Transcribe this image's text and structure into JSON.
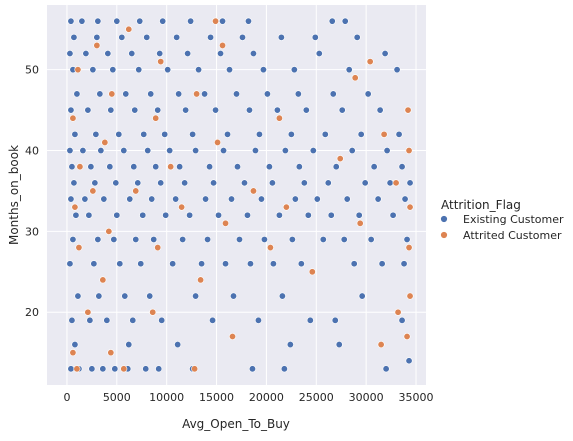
{
  "chart_data": {
    "type": "scatter",
    "title": "",
    "xlabel": "Avg_Open_To_Buy",
    "ylabel": "Months_on_book",
    "xlim": [
      -2000,
      36000
    ],
    "ylim": [
      11,
      58
    ],
    "xticks": [
      0,
      5000,
      10000,
      15000,
      20000,
      25000,
      30000,
      35000
    ],
    "xtick_labels": [
      "0",
      "5000",
      "10000",
      "15000",
      "20000",
      "25000",
      "30000",
      "35000"
    ],
    "yticks": [
      20,
      30,
      40,
      50
    ],
    "ytick_labels": [
      "20",
      "30",
      "40",
      "50"
    ],
    "grid": true,
    "legend": {
      "title": "Attrition_Flag",
      "placement": "right",
      "entries": [
        "Existing Customer",
        "Attrited Customer"
      ]
    },
    "series": [
      {
        "name": "Existing Customer",
        "color": "#4c72b0",
        "points": [
          [
            400,
            13
          ],
          [
            1200,
            13
          ],
          [
            2500,
            13
          ],
          [
            3600,
            13
          ],
          [
            4800,
            13
          ],
          [
            6100,
            13
          ],
          [
            7900,
            13
          ],
          [
            9200,
            13
          ],
          [
            12600,
            13
          ],
          [
            18600,
            13
          ],
          [
            21800,
            13
          ],
          [
            32000,
            13
          ],
          [
            34300,
            14
          ],
          [
            800,
            16
          ],
          [
            6200,
            16
          ],
          [
            11100,
            16
          ],
          [
            22400,
            16
          ],
          [
            27300,
            16
          ],
          [
            500,
            19
          ],
          [
            2300,
            19
          ],
          [
            4000,
            19
          ],
          [
            6600,
            19
          ],
          [
            9500,
            19
          ],
          [
            14600,
            19
          ],
          [
            19200,
            19
          ],
          [
            24400,
            19
          ],
          [
            26900,
            19
          ],
          [
            33600,
            19
          ],
          [
            1100,
            22
          ],
          [
            3200,
            22
          ],
          [
            5800,
            22
          ],
          [
            8300,
            22
          ],
          [
            12900,
            22
          ],
          [
            16700,
            22
          ],
          [
            21600,
            22
          ],
          [
            29600,
            22
          ],
          [
            300,
            26
          ],
          [
            2700,
            26
          ],
          [
            5300,
            26
          ],
          [
            7400,
            26
          ],
          [
            10600,
            26
          ],
          [
            13500,
            26
          ],
          [
            15900,
            26
          ],
          [
            18400,
            26
          ],
          [
            20700,
            26
          ],
          [
            23500,
            26
          ],
          [
            28800,
            26
          ],
          [
            31600,
            26
          ],
          [
            33800,
            26
          ],
          [
            600,
            29
          ],
          [
            3100,
            29
          ],
          [
            4700,
            29
          ],
          [
            6900,
            29
          ],
          [
            8700,
            29
          ],
          [
            11600,
            29
          ],
          [
            14100,
            29
          ],
          [
            17300,
            29
          ],
          [
            19800,
            29
          ],
          [
            22600,
            29
          ],
          [
            25700,
            29
          ],
          [
            27800,
            29
          ],
          [
            30500,
            29
          ],
          [
            34100,
            29
          ],
          [
            900,
            32
          ],
          [
            2200,
            32
          ],
          [
            5000,
            32
          ],
          [
            7600,
            32
          ],
          [
            9900,
            32
          ],
          [
            12300,
            32
          ],
          [
            15200,
            32
          ],
          [
            18100,
            32
          ],
          [
            21300,
            32
          ],
          [
            24200,
            32
          ],
          [
            26500,
            32
          ],
          [
            29300,
            32
          ],
          [
            32700,
            32
          ],
          [
            400,
            34
          ],
          [
            1800,
            34
          ],
          [
            3700,
            34
          ],
          [
            6300,
            34
          ],
          [
            8500,
            34
          ],
          [
            10900,
            34
          ],
          [
            13900,
            34
          ],
          [
            16500,
            34
          ],
          [
            19500,
            34
          ],
          [
            22900,
            34
          ],
          [
            25100,
            34
          ],
          [
            28100,
            34
          ],
          [
            31200,
            34
          ],
          [
            33900,
            34
          ],
          [
            700,
            36
          ],
          [
            2800,
            36
          ],
          [
            4900,
            36
          ],
          [
            7100,
            36
          ],
          [
            9400,
            36
          ],
          [
            11800,
            36
          ],
          [
            14700,
            36
          ],
          [
            17800,
            36
          ],
          [
            20600,
            36
          ],
          [
            23800,
            36
          ],
          [
            26200,
            36
          ],
          [
            29900,
            36
          ],
          [
            32400,
            36
          ],
          [
            34400,
            36
          ],
          [
            500,
            38
          ],
          [
            2400,
            38
          ],
          [
            4300,
            38
          ],
          [
            6700,
            38
          ],
          [
            8900,
            38
          ],
          [
            11300,
            38
          ],
          [
            14300,
            38
          ],
          [
            17100,
            38
          ],
          [
            20300,
            38
          ],
          [
            23300,
            38
          ],
          [
            27000,
            38
          ],
          [
            30800,
            38
          ],
          [
            33600,
            38
          ],
          [
            300,
            40
          ],
          [
            1600,
            40
          ],
          [
            3400,
            40
          ],
          [
            5700,
            40
          ],
          [
            8100,
            40
          ],
          [
            10300,
            40
          ],
          [
            12900,
            40
          ],
          [
            15700,
            40
          ],
          [
            18900,
            40
          ],
          [
            21900,
            40
          ],
          [
            24700,
            40
          ],
          [
            28600,
            40
          ],
          [
            32100,
            40
          ],
          [
            800,
            42
          ],
          [
            2900,
            42
          ],
          [
            5200,
            42
          ],
          [
            7700,
            42
          ],
          [
            9800,
            42
          ],
          [
            12600,
            42
          ],
          [
            16100,
            42
          ],
          [
            19300,
            42
          ],
          [
            22500,
            42
          ],
          [
            25900,
            42
          ],
          [
            29500,
            42
          ],
          [
            33300,
            42
          ],
          [
            400,
            45
          ],
          [
            2100,
            45
          ],
          [
            4400,
            45
          ],
          [
            6800,
            45
          ],
          [
            9100,
            45
          ],
          [
            11900,
            45
          ],
          [
            14900,
            45
          ],
          [
            18300,
            45
          ],
          [
            21100,
            45
          ],
          [
            24000,
            45
          ],
          [
            27600,
            45
          ],
          [
            31400,
            45
          ],
          [
            34200,
            45
          ],
          [
            1000,
            47
          ],
          [
            3300,
            47
          ],
          [
            5900,
            47
          ],
          [
            8400,
            47
          ],
          [
            11200,
            47
          ],
          [
            13800,
            47
          ],
          [
            17000,
            47
          ],
          [
            20100,
            47
          ],
          [
            23200,
            47
          ],
          [
            26700,
            47
          ],
          [
            30200,
            47
          ],
          [
            600,
            50
          ],
          [
            2600,
            50
          ],
          [
            4600,
            50
          ],
          [
            7200,
            50
          ],
          [
            10100,
            50
          ],
          [
            13200,
            50
          ],
          [
            16300,
            50
          ],
          [
            19700,
            50
          ],
          [
            22800,
            50
          ],
          [
            28300,
            50
          ],
          [
            33100,
            50
          ],
          [
            300,
            52
          ],
          [
            1900,
            52
          ],
          [
            4100,
            52
          ],
          [
            6500,
            52
          ],
          [
            9300,
            52
          ],
          [
            12100,
            52
          ],
          [
            15400,
            52
          ],
          [
            18700,
            52
          ],
          [
            25300,
            52
          ],
          [
            31900,
            52
          ],
          [
            700,
            54
          ],
          [
            3000,
            54
          ],
          [
            5500,
            54
          ],
          [
            8000,
            54
          ],
          [
            11000,
            54
          ],
          [
            14400,
            54
          ],
          [
            17600,
            54
          ],
          [
            21500,
            54
          ],
          [
            24900,
            54
          ],
          [
            29100,
            54
          ],
          [
            400,
            56
          ],
          [
            1500,
            56
          ],
          [
            3100,
            56
          ],
          [
            5000,
            56
          ],
          [
            7300,
            56
          ],
          [
            9600,
            56
          ],
          [
            12400,
            56
          ],
          [
            15600,
            56
          ],
          [
            18200,
            56
          ],
          [
            26600,
            56
          ],
          [
            27900,
            56
          ]
        ]
      },
      {
        "name": "Attrited Customer",
        "color": "#dd8452",
        "points": [
          [
            1000,
            13
          ],
          [
            5700,
            13
          ],
          [
            12800,
            13
          ],
          [
            600,
            15
          ],
          [
            4400,
            15
          ],
          [
            31500,
            16
          ],
          [
            16600,
            17
          ],
          [
            34100,
            17
          ],
          [
            2100,
            20
          ],
          [
            8600,
            20
          ],
          [
            33200,
            20
          ],
          [
            34400,
            22
          ],
          [
            3600,
            24
          ],
          [
            13400,
            24
          ],
          [
            24600,
            25
          ],
          [
            1200,
            28
          ],
          [
            9100,
            28
          ],
          [
            20400,
            28
          ],
          [
            34300,
            28
          ],
          [
            4200,
            30
          ],
          [
            15900,
            31
          ],
          [
            29400,
            31
          ],
          [
            800,
            33
          ],
          [
            11500,
            33
          ],
          [
            22000,
            33
          ],
          [
            34400,
            33
          ],
          [
            2600,
            35
          ],
          [
            6900,
            35
          ],
          [
            18700,
            35
          ],
          [
            33000,
            36
          ],
          [
            1300,
            38
          ],
          [
            10400,
            38
          ],
          [
            27400,
            39
          ],
          [
            34300,
            40
          ],
          [
            3800,
            41
          ],
          [
            15100,
            41
          ],
          [
            31800,
            42
          ],
          [
            600,
            44
          ],
          [
            8900,
            44
          ],
          [
            21300,
            44
          ],
          [
            34200,
            45
          ],
          [
            4500,
            47
          ],
          [
            13000,
            47
          ],
          [
            28900,
            49
          ],
          [
            1100,
            50
          ],
          [
            9400,
            51
          ],
          [
            30400,
            51
          ],
          [
            3000,
            53
          ],
          [
            15600,
            53
          ],
          [
            6200,
            55
          ],
          [
            14900,
            56
          ]
        ]
      }
    ]
  }
}
